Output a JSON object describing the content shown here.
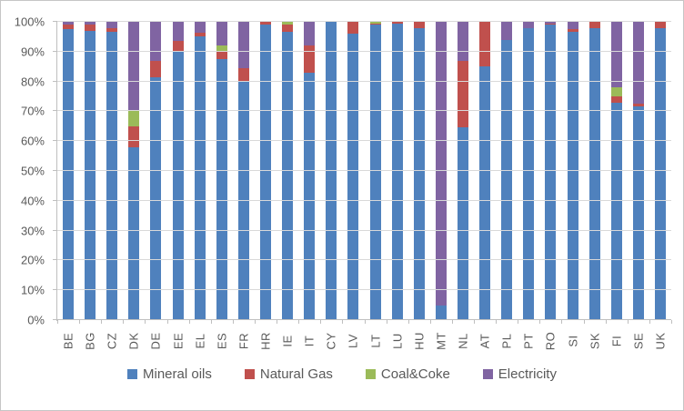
{
  "chart": {
    "y_axis": {
      "tick_labels": [
        "0%",
        "10%",
        "20%",
        "30%",
        "40%",
        "50%",
        "60%",
        "70%",
        "80%",
        "90%",
        "100%"
      ],
      "min": 0,
      "max": 100,
      "step": 10
    },
    "colors": {
      "grid": "#d9d9d9",
      "axis": "#bfbfbf",
      "text": "#595959",
      "background": "#ffffff",
      "border": "#c6c6c6"
    }
  },
  "chart_data": {
    "type": "bar",
    "stacked": true,
    "percent_stacked": true,
    "title": "",
    "xlabel": "",
    "ylabel": "",
    "ylim": [
      0,
      100
    ],
    "grid": true,
    "legend_position": "bottom",
    "categories": [
      "BE",
      "BG",
      "CZ",
      "DK",
      "DE",
      "EE",
      "EL",
      "ES",
      "FR",
      "HR",
      "IE",
      "IT",
      "CY",
      "LV",
      "LT",
      "LU",
      "HU",
      "MT",
      "NL",
      "AT",
      "PL",
      "PT",
      "RO",
      "SI",
      "SK",
      "FI",
      "SE",
      "UK"
    ],
    "series": [
      {
        "name": "Mineral oils",
        "color": "#4F81BD",
        "values": [
          97.5,
          97,
          96.5,
          58,
          81.5,
          90,
          95,
          87.5,
          80,
          99,
          96.5,
          83,
          100,
          96,
          99,
          99.5,
          98,
          5,
          64.5,
          85,
          94,
          98,
          99,
          96.5,
          98,
          73,
          71.5,
          98
        ]
      },
      {
        "name": "Natural Gas",
        "color": "#C0504D",
        "values": [
          1.5,
          2,
          1.5,
          7,
          5.5,
          3.5,
          1.5,
          2.5,
          4.5,
          1,
          2.5,
          9,
          0,
          4,
          0.5,
          0.5,
          2,
          0,
          22.5,
          15,
          0,
          0,
          0.5,
          1,
          2,
          2,
          1,
          2
        ]
      },
      {
        "name": "Coal&Coke",
        "color": "#9BBB59",
        "values": [
          0,
          0,
          0,
          5,
          0,
          0,
          0,
          2,
          0,
          0,
          1,
          0,
          0,
          0,
          0.5,
          0,
          0,
          0,
          0,
          0,
          0,
          0,
          0,
          0,
          0,
          3,
          0,
          0
        ]
      },
      {
        "name": "Electricity",
        "color": "#8064A2",
        "values": [
          1,
          1,
          2,
          30,
          13,
          6.5,
          3.5,
          8,
          15.5,
          0,
          0,
          8,
          0,
          0,
          0,
          0,
          0,
          95,
          13,
          0,
          6,
          2,
          0.5,
          2.5,
          0,
          22,
          27.5,
          0
        ]
      }
    ]
  }
}
